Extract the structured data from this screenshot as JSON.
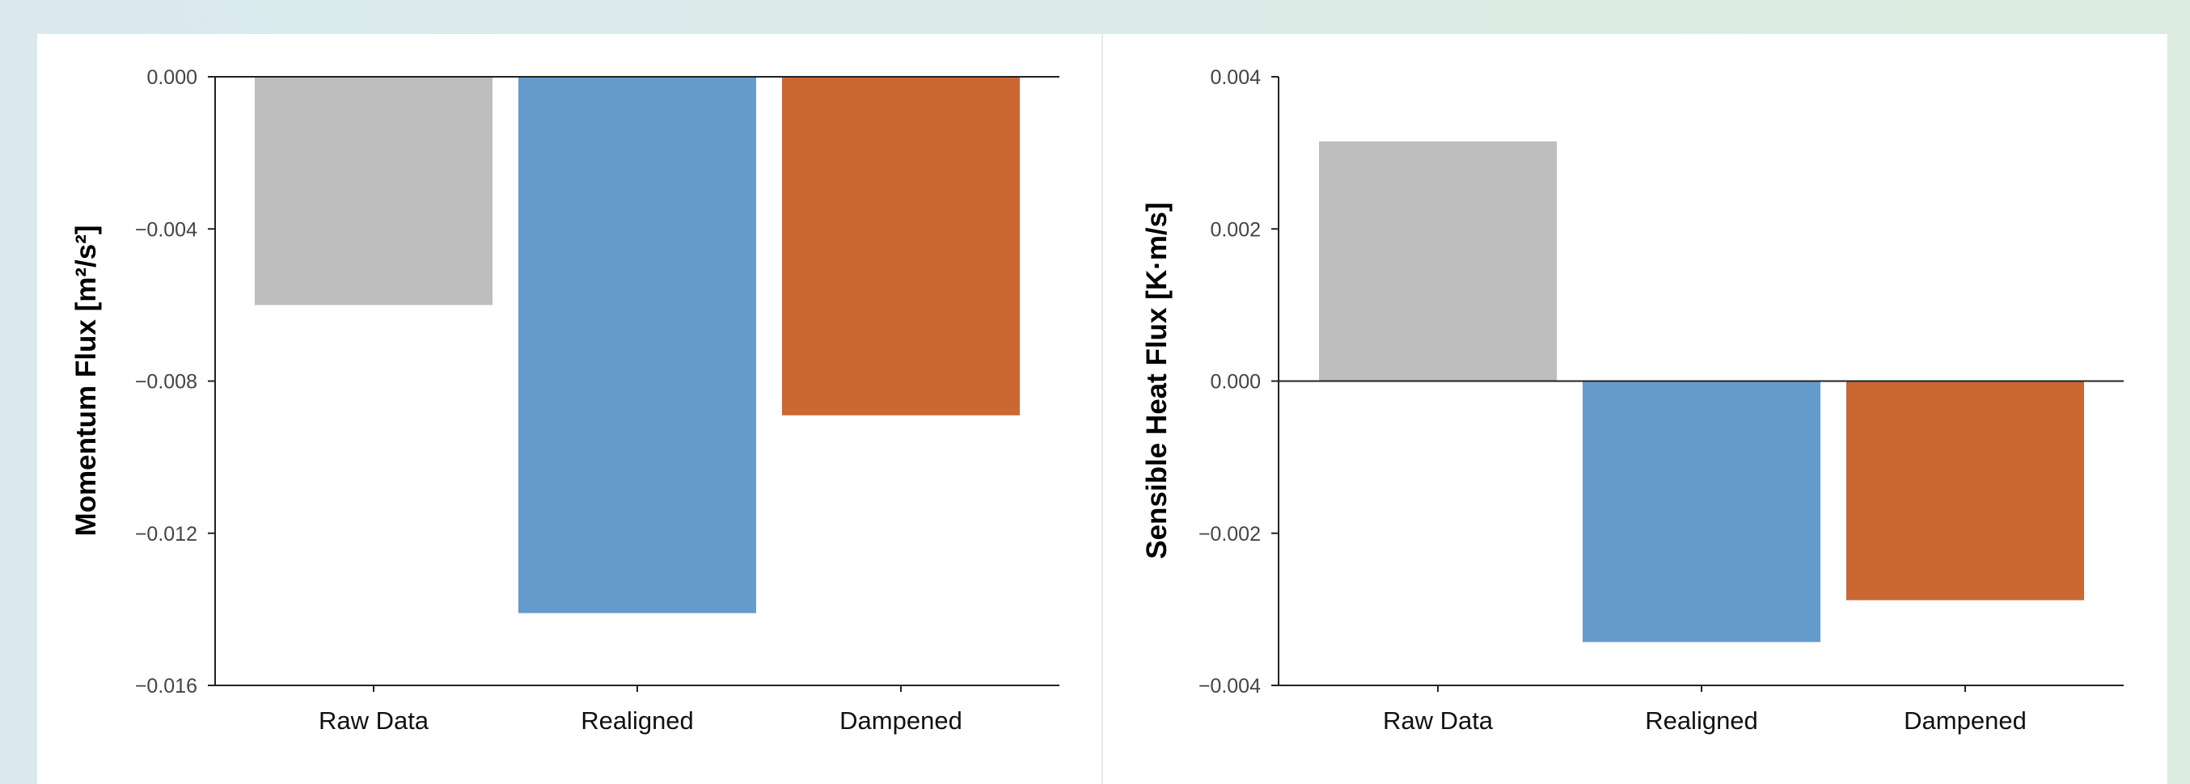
{
  "chart_data": [
    {
      "type": "bar",
      "categories": [
        "Raw Data",
        "Realigned",
        "Dampened"
      ],
      "values": [
        -0.006,
        -0.0141,
        -0.0089
      ],
      "colors": [
        "#bebebe",
        "#659bcd",
        "#cb6733"
      ],
      "ylabel": "Momentum Flux [m²/s²]",
      "xlabel": "",
      "ylim": [
        -0.016,
        0.0
      ],
      "yticks": [
        "0.000",
        "−0.004",
        "−0.008",
        "−0.012",
        "−0.016"
      ],
      "grid": false
    },
    {
      "type": "bar",
      "categories": [
        "Raw Data",
        "Realigned",
        "Dampened"
      ],
      "values": [
        0.00315,
        -0.00343,
        -0.00288
      ],
      "colors": [
        "#bebebe",
        "#659bcd",
        "#cb6733"
      ],
      "ylabel": "Sensible Heat Flux [K·m/s]",
      "xlabel": "",
      "ylim": [
        -0.004,
        0.004
      ],
      "yticks": [
        "0.004",
        "0.002",
        "0.000",
        "−0.002",
        "−0.004"
      ],
      "grid": false
    }
  ]
}
